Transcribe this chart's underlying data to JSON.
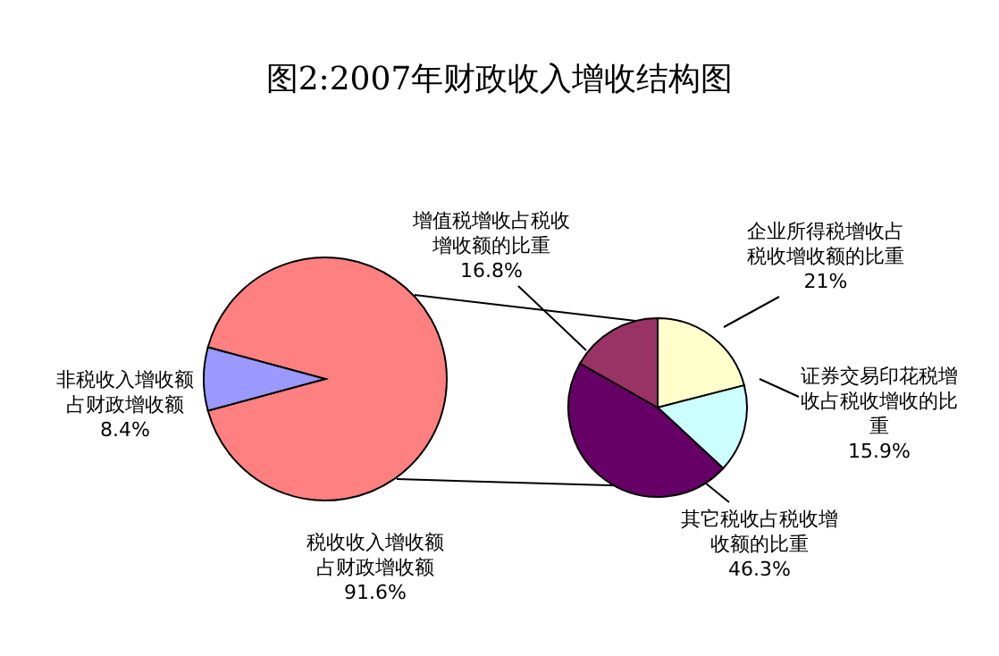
{
  "chart_data": [
    {
      "type": "pie",
      "title": "图2:2007年财政收入增收结构图",
      "categories": [
        "税收收入增收额占财政增收额",
        "非税收入增收额占财政增收额"
      ],
      "values": [
        91.6,
        8.4
      ],
      "colors": [
        "#ff8080",
        "#9999ff"
      ],
      "value_labels": [
        "91.6%",
        "8.4%"
      ]
    },
    {
      "type": "pie",
      "categories": [
        "企业所得税增收占税收增收额的比重",
        "证券交易印花税增收占税收增收的比重",
        "其它税收占税收增收额的比重",
        "增值税增收占税收增收额的比重"
      ],
      "values": [
        21,
        15.9,
        46.3,
        16.8
      ],
      "colors": [
        "#ffffcc",
        "#ccffff",
        "#660066",
        "#993366"
      ],
      "value_labels": [
        "21%",
        "15.9%",
        "46.3%",
        "16.8%"
      ]
    }
  ]
}
